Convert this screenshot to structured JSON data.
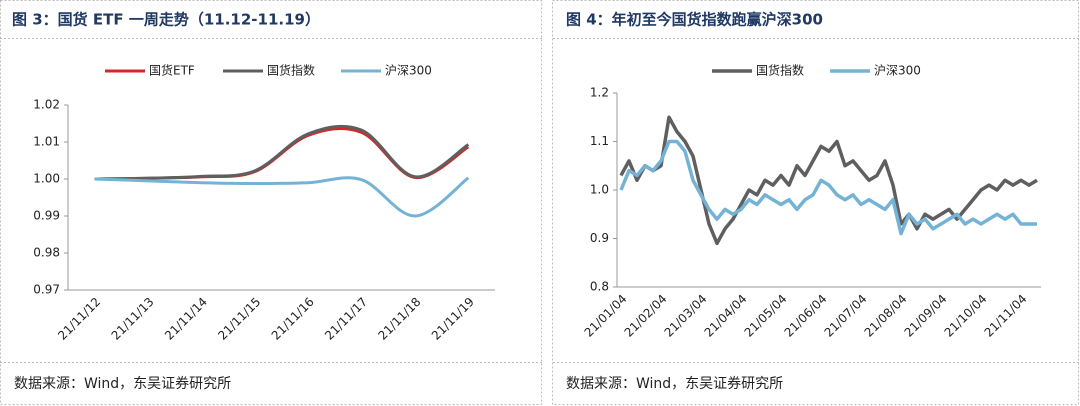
{
  "chart_data": [
    {
      "type": "line",
      "title": "图 3：国货 ETF 一周走势（11.12-11.19）",
      "source": "数据来源：Wind，东吴证券研究所",
      "categories": [
        "21/11/12",
        "21/11/13",
        "21/11/14",
        "21/11/15",
        "21/11/16",
        "21/11/17",
        "21/11/18",
        "21/11/19"
      ],
      "smooth": true,
      "series": [
        {
          "name": "国货ETF",
          "color": "#d62728",
          "values": [
            1.0,
            1.0002,
            1.0006,
            1.002,
            1.0118,
            1.0126,
            1.0004,
            1.0087
          ]
        },
        {
          "name": "国货指数",
          "color": "#5f5f5f",
          "values": [
            1.0,
            1.0002,
            1.0007,
            1.0022,
            1.0122,
            1.0132,
            1.0006,
            1.0093
          ]
        },
        {
          "name": "沪深300",
          "color": "#74b3d6",
          "values": [
            1.0,
            0.9995,
            0.999,
            0.9988,
            0.999,
            0.9998,
            0.99,
            1.0003
          ]
        }
      ],
      "ylim": [
        0.97,
        1.02
      ],
      "yticks": [
        0.97,
        0.98,
        0.99,
        {
          "value": 1,
          "label": "1.00"
        },
        1.01,
        1.02
      ]
    },
    {
      "type": "line",
      "title": "图 4：年初至今国货指数跑赢沪深300",
      "source": "数据来源：Wind，东吴证券研究所",
      "categories": [
        "21/01/04",
        null,
        null,
        null,
        null,
        "21/02/04",
        null,
        null,
        null,
        null,
        "21/03/04",
        null,
        null,
        null,
        null,
        "21/04/04",
        null,
        null,
        null,
        null,
        "21/05/04",
        null,
        null,
        null,
        null,
        "21/06/04",
        null,
        null,
        null,
        null,
        "21/07/04",
        null,
        null,
        null,
        null,
        "21/08/04",
        null,
        null,
        null,
        null,
        "21/09/04",
        null,
        null,
        null,
        null,
        "21/10/04",
        null,
        null,
        null,
        null,
        "21/11/04",
        null,
        null
      ],
      "smooth": false,
      "series": [
        {
          "name": "国货指数",
          "color": "#5f5f5f",
          "values": [
            1.03,
            1.06,
            1.02,
            1.05,
            1.04,
            1.05,
            1.15,
            1.12,
            1.1,
            1.07,
            1.0,
            0.93,
            0.89,
            0.92,
            0.94,
            0.97,
            1.0,
            0.99,
            1.02,
            1.01,
            1.03,
            1.01,
            1.05,
            1.03,
            1.06,
            1.09,
            1.08,
            1.1,
            1.05,
            1.06,
            1.04,
            1.02,
            1.03,
            1.06,
            1.01,
            0.93,
            0.95,
            0.92,
            0.95,
            0.94,
            0.95,
            0.96,
            0.94,
            0.96,
            0.98,
            1.0,
            1.01,
            1.0,
            1.02,
            1.01,
            1.02,
            1.01,
            1.02
          ]
        },
        {
          "name": "沪深300",
          "color": "#74b3d6",
          "values": [
            1.0,
            1.04,
            1.03,
            1.05,
            1.04,
            1.06,
            1.1,
            1.1,
            1.08,
            1.02,
            0.99,
            0.96,
            0.94,
            0.96,
            0.95,
            0.96,
            0.98,
            0.97,
            0.99,
            0.98,
            0.97,
            0.98,
            0.96,
            0.98,
            0.99,
            1.02,
            1.01,
            0.99,
            0.98,
            0.99,
            0.97,
            0.98,
            0.97,
            0.96,
            0.98,
            0.91,
            0.95,
            0.93,
            0.94,
            0.92,
            0.93,
            0.94,
            0.95,
            0.93,
            0.94,
            0.93,
            0.94,
            0.95,
            0.94,
            0.95,
            0.93,
            0.93,
            0.93
          ]
        }
      ],
      "ylim": [
        0.8,
        1.2
      ],
      "yticks": [
        0.8,
        0.9,
        {
          "value": 1,
          "label": "1.0"
        },
        1.1,
        1.2
      ]
    }
  ]
}
